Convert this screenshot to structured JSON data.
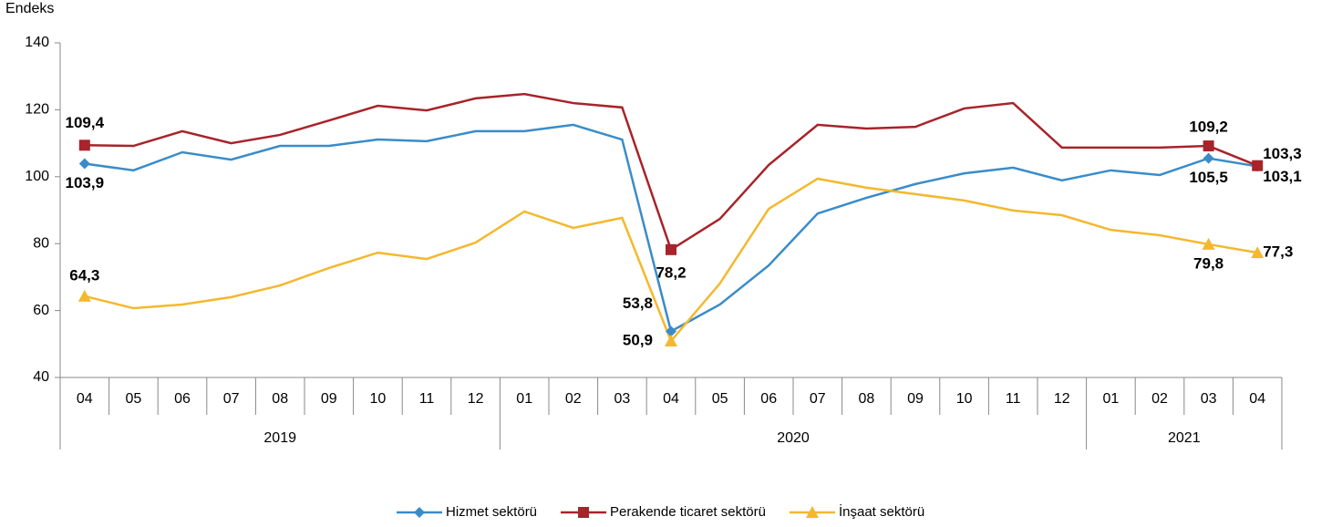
{
  "chart_data": {
    "type": "line",
    "y_label": "Endeks",
    "categories": [
      "04",
      "05",
      "06",
      "07",
      "08",
      "09",
      "10",
      "11",
      "12",
      "01",
      "02",
      "03",
      "04",
      "05",
      "06",
      "07",
      "08",
      "09",
      "10",
      "11",
      "12",
      "01",
      "02",
      "03",
      "04"
    ],
    "groups": [
      {
        "label": "2019",
        "span": 9
      },
      {
        "label": "2020",
        "span": 12
      },
      {
        "label": "2021",
        "span": 4
      }
    ],
    "ylim": [
      40,
      140
    ],
    "yticks": [
      40,
      60,
      80,
      100,
      120,
      140
    ],
    "series": [
      {
        "name": "Hizmet sektörü",
        "color": "#3a8cc9",
        "marker": "diamond",
        "values": [
          103.9,
          101.9,
          107.3,
          105.1,
          109.2,
          109.2,
          111.1,
          110.6,
          113.6,
          113.6,
          115.5,
          111.1,
          53.8,
          61.8,
          73.5,
          89,
          93.7,
          97.8,
          101,
          102.7,
          98.9,
          101.9,
          100.5,
          105.5,
          103.1
        ],
        "value_labels": [
          "103,9",
          null,
          null,
          null,
          null,
          null,
          null,
          null,
          null,
          null,
          null,
          null,
          "53,8",
          null,
          null,
          null,
          null,
          null,
          null,
          null,
          null,
          null,
          null,
          "105,5",
          "103,1"
        ]
      },
      {
        "name": "Perakende ticaret sektörü",
        "color": "#a8232a",
        "marker": "square",
        "values": [
          109.4,
          109.2,
          113.6,
          110,
          112.5,
          116.8,
          121.2,
          119.8,
          123.4,
          124.7,
          122,
          120.7,
          78.2,
          87.4,
          103.5,
          115.5,
          114.4,
          114.9,
          120.4,
          122,
          108.7,
          108.7,
          108.7,
          109.2,
          103.3
        ],
        "value_labels": [
          "109,4",
          null,
          null,
          null,
          null,
          null,
          null,
          null,
          null,
          null,
          null,
          null,
          "78,2",
          null,
          null,
          null,
          null,
          null,
          null,
          null,
          null,
          null,
          null,
          "109,2",
          "103,3"
        ]
      },
      {
        "name": "İnşaat sektörü",
        "color": "#f4b82e",
        "marker": "triangle",
        "values": [
          64.3,
          60.7,
          61.8,
          64,
          67.5,
          72.7,
          77.3,
          75.4,
          80.3,
          89.6,
          84.7,
          87.7,
          50.9,
          68.1,
          90.4,
          99.4,
          96.7,
          94.8,
          92.9,
          89.9,
          88.5,
          84.1,
          82.5,
          79.8,
          77.3
        ],
        "value_labels": [
          "64,3",
          null,
          null,
          null,
          null,
          null,
          null,
          null,
          null,
          null,
          null,
          null,
          "50,9",
          null,
          null,
          null,
          null,
          null,
          null,
          null,
          null,
          null,
          null,
          "79,8",
          "77,3"
        ]
      }
    ]
  }
}
